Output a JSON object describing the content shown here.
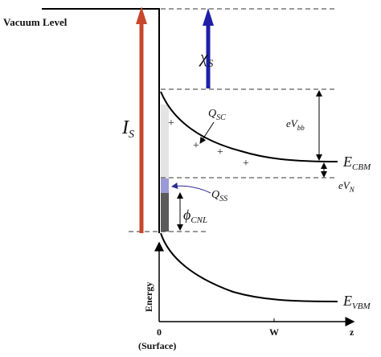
{
  "diagram": {
    "vacuum_level_label": "Vacuum Level",
    "chi_symbol": "χ",
    "chi_sub": "S",
    "ionization_symbol": "I",
    "ionization_sub": "S",
    "qsc_symbol": "Q",
    "qsc_sub": "SC",
    "qss_symbol": "Q",
    "qss_sub": "SS",
    "phi_symbol": "ϕ",
    "phi_sub": "CNL",
    "evbb_main": "eV",
    "evbb_sub": "bb",
    "evn_main": "eV",
    "evn_sub": "N",
    "ecbm_main": "E",
    "ecbm_sub": "CBM",
    "evbm_main": "E",
    "evbm_sub": "VBM",
    "energy_axis_label": "Energy",
    "zero_label": "0",
    "surface_label": "(Surface)",
    "w_label": "W",
    "z_label": "z",
    "plus_sign": "+",
    "colors": {
      "ionization_arrow": "#c8472c",
      "electron_affinity_arrow": "#1f1fa8",
      "surface_states_fill": "#9a9ad6",
      "qss_pointer": "#2b2b8f",
      "filled_states": "#5a5a5a",
      "depleted_region": "#e4e4e4"
    }
  }
}
